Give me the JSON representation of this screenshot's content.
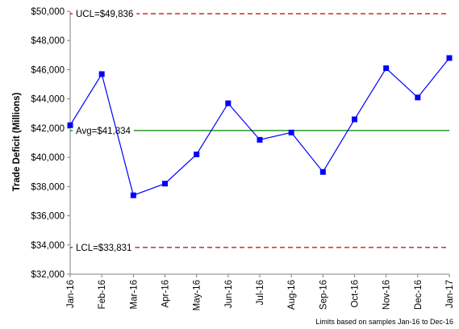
{
  "chart_data": {
    "type": "line",
    "ylabel": "Trade Deficit (Millions)",
    "xlabel": "",
    "ylim": [
      32000,
      50000
    ],
    "ytick_step": 2000,
    "grid": false,
    "categories": [
      "Jan-16",
      "Feb-16",
      "Mar-16",
      "Apr-16",
      "May-16",
      "Jun-16",
      "Jul-16",
      "Aug-16",
      "Sep-16",
      "Oct-16",
      "Nov-16",
      "Dec-16",
      "Jan-17"
    ],
    "series": [
      {
        "values": [
          42200,
          45700,
          37400,
          38200,
          40200,
          43700,
          41200,
          41700,
          39000,
          42600,
          46100,
          44100,
          46800
        ]
      }
    ],
    "reference_lines": [
      {
        "label": "UCL=$49,836",
        "value": 49836
      },
      {
        "label": "Avg=$41,834",
        "value": 41834
      },
      {
        "label": "LCL=$33,831",
        "value": 33831
      }
    ],
    "footnote": "Limits based on samples Jan-16 to Dec-16"
  },
  "colors": {
    "series": "#0000ff",
    "marker": "#0000ff",
    "control_limit": "#c00000",
    "average": "#008000",
    "axis": "#808080"
  }
}
